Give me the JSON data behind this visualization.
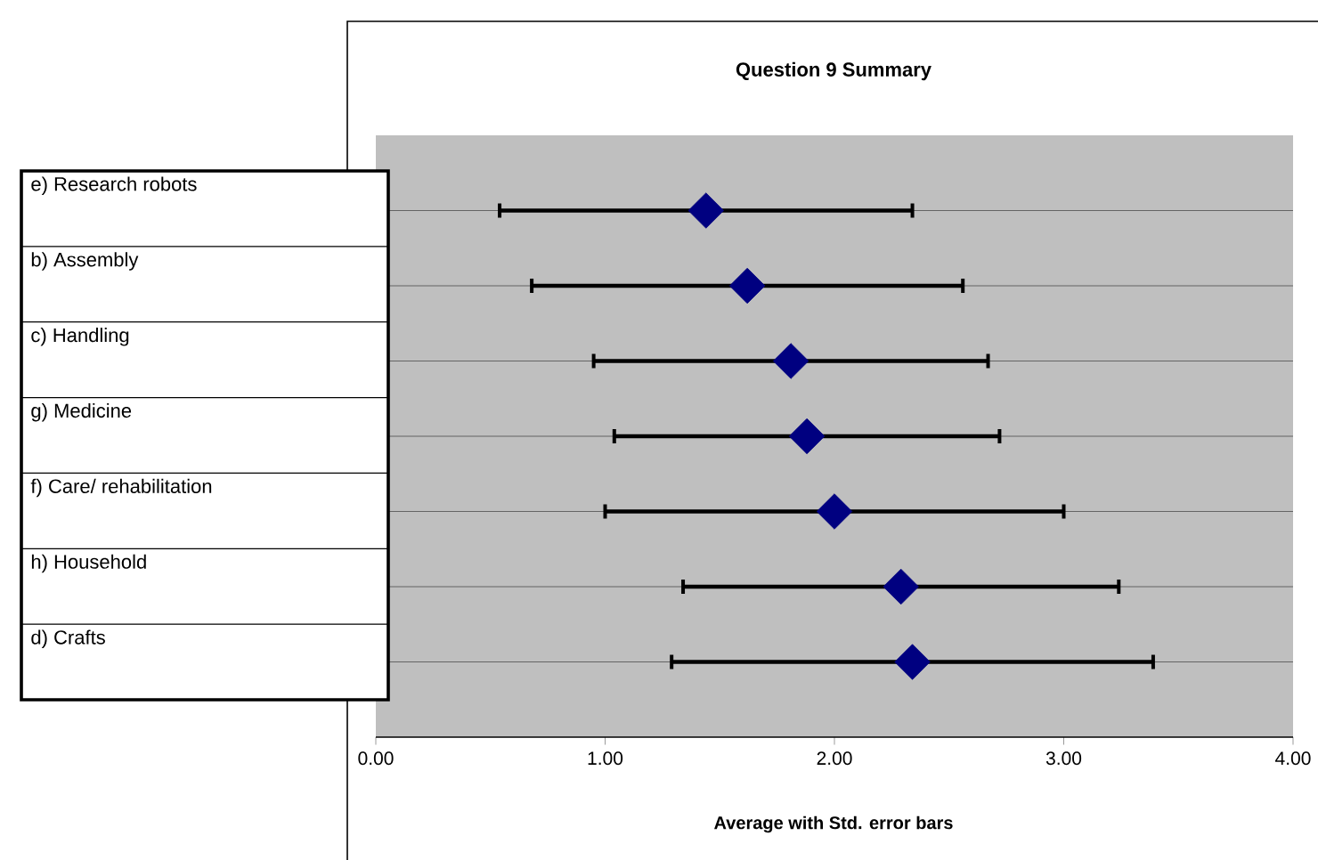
{
  "chart_data": {
    "type": "scatter",
    "orientation": "horizontal",
    "title": "Question 9 Summary",
    "xlabel": "Average with Std. error bars",
    "categories": [
      "e) Research robots",
      "b) Assembly",
      "c) Handling",
      "g) Medicine",
      "f) Care/ rehabilitation",
      "h) Household",
      "d) Crafts"
    ],
    "values": [
      1.44,
      1.62,
      1.81,
      1.88,
      2.0,
      2.29,
      2.34
    ],
    "errors": [
      0.9,
      0.94,
      0.86,
      0.84,
      1.0,
      0.95,
      1.05
    ],
    "color": "#000080",
    "marker": "diamond",
    "grid": "y",
    "tick_labels": "x",
    "xlim": [
      0,
      4
    ],
    "xticks": [
      {
        "value": 0,
        "label": "0.00"
      },
      {
        "value": 1,
        "label": "1.00"
      },
      {
        "value": 2,
        "label": "2.00"
      },
      {
        "value": 3,
        "label": "3.00"
      },
      {
        "value": 4,
        "label": "4.00"
      }
    ]
  }
}
